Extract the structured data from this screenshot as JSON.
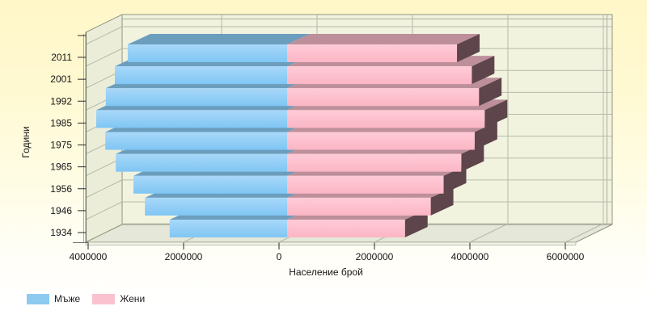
{
  "chart_data": {
    "type": "bar",
    "style": "3d-horizontal-population-pyramid",
    "title": "",
    "xlabel": "Население брой",
    "ylabel": "Години",
    "categories": [
      "2011",
      "2001",
      "1992",
      "1985",
      "1975",
      "1965",
      "1956",
      "1946",
      "1934"
    ],
    "series": [
      {
        "name": "Мъже",
        "side": "left",
        "legend_color": "#8CCAF0",
        "values": [
          3340000,
          3610000,
          3800000,
          4000000,
          3810000,
          3590000,
          3220000,
          2980000,
          2460000
        ]
      },
      {
        "name": "Жени",
        "side": "right",
        "legend_color": "#F9C2CE",
        "values": [
          3560000,
          3870000,
          4020000,
          4140000,
          3930000,
          3650000,
          3280000,
          3010000,
          2470000
        ]
      }
    ],
    "x_tick_values": [
      -4000000,
      -2000000,
      0,
      2000000,
      4000000,
      6000000
    ],
    "x_tick_labels": [
      "4000000",
      "2000000",
      "0",
      "2000000",
      "4000000",
      "6000000"
    ],
    "xlim": [
      -4100000,
      6250000
    ],
    "grid": true,
    "legend_position": "bottom-left"
  },
  "colors": {
    "men_front_light": "#A9D8F9",
    "men_front_deep": "#7FC6F4",
    "men_top": "#6B9DBD",
    "women_front_light": "#FFCBD7",
    "women_front_deep": "#FBB6C5",
    "women_top": "#BD8F9A",
    "women_cap": "#5D454B",
    "back_wall": "#F1F3DF",
    "left_wall": "#EBEDD9",
    "floor": "#E5E7D9",
    "floor_lip": "#F0F2E5",
    "grid_line": "#B5BAA8",
    "frame": "#8F957F",
    "slab_line": "#A8AD9B",
    "tick": "#2A2A2A",
    "text": "#161616"
  }
}
